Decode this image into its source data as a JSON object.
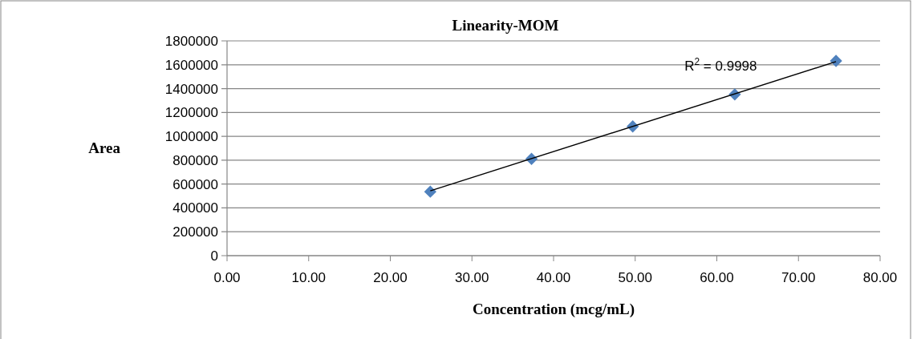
{
  "chart_data": {
    "type": "scatter",
    "title": "Linearity-MOM",
    "xlabel": "Concentration (mcg/mL)",
    "ylabel": "Area",
    "x": [
      24.9,
      37.3,
      49.7,
      62.2,
      74.6
    ],
    "series": [
      {
        "color": "#4f81bd",
        "marker": "diamond",
        "values": [
          536000,
          811000,
          1083000,
          1351000,
          1632000
        ]
      },
      {
        "type": "line",
        "color": "#000000",
        "x": [
          24.9,
          74.6
        ],
        "values": [
          543000,
          1626000
        ]
      }
    ],
    "xlim": [
      0,
      80
    ],
    "xticks": [
      {
        "value": 0,
        "label": "0.00"
      },
      {
        "value": 10,
        "label": "10.00"
      },
      {
        "value": 20,
        "label": "20.00"
      },
      {
        "value": 30,
        "label": "30.00"
      },
      {
        "value": 40,
        "label": "40.00"
      },
      {
        "value": 50,
        "label": "50.00"
      },
      {
        "value": 60,
        "label": "60.00"
      },
      {
        "value": 70,
        "label": "70.00"
      },
      {
        "value": 80,
        "label": "80.00"
      }
    ],
    "ylim": [
      0,
      1800000
    ],
    "yticks": [
      0,
      200000,
      400000,
      600000,
      800000,
      1000000,
      1200000,
      1400000,
      1600000,
      1800000
    ],
    "grid": "y",
    "annotations": [
      "R$^{2}$ = 0.9998"
    ]
  }
}
